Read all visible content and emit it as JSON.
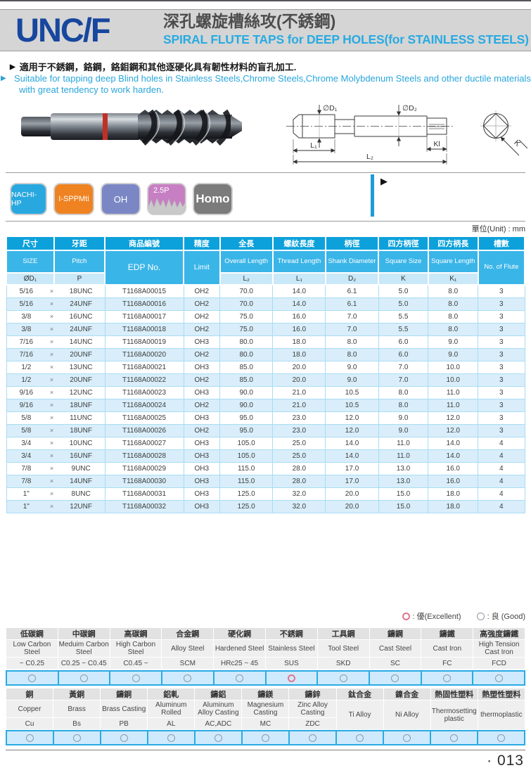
{
  "page": {
    "unit_label": "單位(Unit) : mm",
    "page_number": "· 013"
  },
  "icons": {
    "bullet": "▶",
    "play": "▶"
  },
  "colors": {
    "accent_blue": "#29abe2",
    "series_navy": "#17479e",
    "table_header_dark": "#0da1db",
    "table_header_light": "#3ab5e8",
    "table_header_pale": "#c9e8f8",
    "row_alt": "#d9eefa",
    "excellent_pink": "#e0758f",
    "good_gray": "#8e9aa6",
    "blue_bar": "#1d9bdb"
  },
  "header": {
    "series": "UNC/F",
    "title_zh": "深孔螺旋槽絲攻(不銹鋼)",
    "title_en": "SPIRAL FLUTE TAPS for DEEP HOLES(for STAINLESS STEELS)"
  },
  "intro": {
    "zh": "適用于不銹鋼，鉻鋼，鉻鉬鋼和其他逐硬化具有韌性材料的盲孔加工.",
    "en": "Suitable for tapping deep Blind holes in Stainless Steels,Chrome Steels,Chrome Molybdenum Steels and other ductile materials with great tendency to work harden."
  },
  "badges": [
    {
      "label": "NACHI-HP",
      "color": "#29a8e0"
    },
    {
      "label": "I-SPPMti",
      "color": "#ef8322"
    },
    {
      "label": "OH",
      "color": "#7b87c5"
    },
    {
      "label": "2.5P",
      "color": "#c77fc3"
    },
    {
      "label": "Homo",
      "color": "#7b7b7b"
    }
  ],
  "diagram": {
    "d1": "∅D₁",
    "d2": "∅D₂",
    "l1": "L₁",
    "l2": "L₂",
    "kl": "Kl",
    "k": "K"
  },
  "spec_table": {
    "multiply_sign": "×",
    "header_zh": [
      "尺寸",
      "牙距",
      "商品編號",
      "精度",
      "全長",
      "螺紋長度",
      "柄徑",
      "四方柄徑",
      "四方柄長",
      "槽數"
    ],
    "header_en": [
      "SIZE",
      "Pitch",
      "EDP No.",
      "Limit",
      "Overall Length",
      "Thread Length",
      "Shank Diameter",
      "Square Size",
      "Square Length",
      "No. of Flute"
    ],
    "header_sym": {
      "size": "ØD₁",
      "pitch": "P",
      "l2": "L₂",
      "l1": "L₁",
      "d2": "D₂",
      "k": "K",
      "k1": "K₁"
    },
    "rows": [
      [
        "5/16",
        "18UNC",
        "T1168A00015",
        "OH2",
        "70.0",
        "14.0",
        "6.1",
        "5.0",
        "8.0",
        "3"
      ],
      [
        "5/16",
        "24UNF",
        "T1168A00016",
        "OH2",
        "70.0",
        "14.0",
        "6.1",
        "5.0",
        "8.0",
        "3"
      ],
      [
        "3/8",
        "16UNC",
        "T1168A00017",
        "OH2",
        "75.0",
        "16.0",
        "7.0",
        "5.5",
        "8.0",
        "3"
      ],
      [
        "3/8",
        "24UNF",
        "T1168A00018",
        "OH2",
        "75.0",
        "16.0",
        "7.0",
        "5.5",
        "8.0",
        "3"
      ],
      [
        "7/16",
        "14UNC",
        "T1168A00019",
        "OH3",
        "80.0",
        "18.0",
        "8.0",
        "6.0",
        "9.0",
        "3"
      ],
      [
        "7/16",
        "20UNF",
        "T1168A00020",
        "OH2",
        "80.0",
        "18.0",
        "8.0",
        "6.0",
        "9.0",
        "3"
      ],
      [
        "1/2",
        "13UNC",
        "T1168A00021",
        "OH3",
        "85.0",
        "20.0",
        "9.0",
        "7.0",
        "10.0",
        "3"
      ],
      [
        "1/2",
        "20UNF",
        "T1168A00022",
        "OH2",
        "85.0",
        "20.0",
        "9.0",
        "7.0",
        "10.0",
        "3"
      ],
      [
        "9/16",
        "12UNC",
        "T1168A00023",
        "OH3",
        "90.0",
        "21.0",
        "10.5",
        "8.0",
        "11.0",
        "3"
      ],
      [
        "9/16",
        "18UNF",
        "T1168A00024",
        "OH2",
        "90.0",
        "21.0",
        "10.5",
        "8.0",
        "11.0",
        "3"
      ],
      [
        "5/8",
        "11UNC",
        "T1168A00025",
        "OH3",
        "95.0",
        "23.0",
        "12.0",
        "9.0",
        "12.0",
        "3"
      ],
      [
        "5/8",
        "18UNF",
        "T1168A00026",
        "OH2",
        "95.0",
        "23.0",
        "12.0",
        "9.0",
        "12.0",
        "3"
      ],
      [
        "3/4",
        "10UNC",
        "T1168A00027",
        "OH3",
        "105.0",
        "25.0",
        "14.0",
        "11.0",
        "14.0",
        "4"
      ],
      [
        "3/4",
        "16UNF",
        "T1168A00028",
        "OH3",
        "105.0",
        "25.0",
        "14.0",
        "11.0",
        "14.0",
        "4"
      ],
      [
        "7/8",
        "9UNC",
        "T1168A00029",
        "OH3",
        "115.0",
        "28.0",
        "17.0",
        "13.0",
        "16.0",
        "4"
      ],
      [
        "7/8",
        "14UNF",
        "T1168A00030",
        "OH3",
        "115.0",
        "28.0",
        "17.0",
        "13.0",
        "16.0",
        "4"
      ],
      [
        "1\"",
        "8UNC",
        "T1168A00031",
        "OH3",
        "125.0",
        "32.0",
        "20.0",
        "15.0",
        "18.0",
        "4"
      ],
      [
        "1\"",
        "12UNF",
        "T1168A00032",
        "OH3",
        "125.0",
        "32.0",
        "20.0",
        "15.0",
        "18.0",
        "4"
      ]
    ]
  },
  "legend": {
    "excellent_label": ": 優(Excellent)",
    "good_label": ": 良 (Good)"
  },
  "material_table_1": {
    "columns": [
      {
        "zh": "低碳鋼",
        "en": "Low Carbon Steel",
        "code": "~ C0.25",
        "rating": "good"
      },
      {
        "zh": "中碳鋼",
        "en": "Meduim Carbon Steel",
        "code": "C0.25 ~ C0.45",
        "rating": "good"
      },
      {
        "zh": "高碳鋼",
        "en": "High Carbon Steel",
        "code": "C0.45 ~",
        "rating": "good"
      },
      {
        "zh": "合金鋼",
        "en": "Alloy Steel",
        "code": "SCM",
        "rating": "good"
      },
      {
        "zh": "硬化鋼",
        "en": "Hardened Steel",
        "code": "HRc25 ~ 45",
        "rating": "good"
      },
      {
        "zh": "不銹鋼",
        "en": "Stainless Steel",
        "code": "SUS",
        "rating": "excellent"
      },
      {
        "zh": "工具鋼",
        "en": "Tool Steel",
        "code": "SKD",
        "rating": "good"
      },
      {
        "zh": "鑄鋼",
        "en": "Cast Steel",
        "code": "SC",
        "rating": "good"
      },
      {
        "zh": "鑄鐵",
        "en": "Cast Iron",
        "code": "FC",
        "rating": "good"
      },
      {
        "zh": "高強度鑄鐵",
        "en": "High Tension Cast Iron",
        "code": "FCD",
        "rating": "good"
      }
    ]
  },
  "material_table_2": {
    "columns": [
      {
        "zh": "銅",
        "en": "Copper",
        "code": "Cu",
        "rating": "good"
      },
      {
        "zh": "黃銅",
        "en": "Brass",
        "code": "Bs",
        "rating": "good"
      },
      {
        "zh": "鑄銅",
        "en": "Brass Casting",
        "code": "PB",
        "rating": "good"
      },
      {
        "zh": "鋁軋",
        "en": "Aluminum Rolled",
        "code": "AL",
        "rating": "good"
      },
      {
        "zh": "鑄鋁",
        "en": "Aluminum Alloy Casting",
        "code": "AC,ADC",
        "rating": "good"
      },
      {
        "zh": "鑄鎂",
        "en": "Magnesium Casting",
        "code": "MC",
        "rating": "good"
      },
      {
        "zh": "鑄鋅",
        "en": "Zinc Alloy Casting",
        "code": "ZDC",
        "rating": "good"
      },
      {
        "zh": "鈦合金",
        "en": "Ti Alloy",
        "code": null,
        "rating": "good"
      },
      {
        "zh": "鎳合金",
        "en": "Ni Alloy",
        "code": null,
        "rating": "good"
      },
      {
        "zh": "熱固性塑料",
        "en": "Thermosetting plastic",
        "code": null,
        "rating": "good"
      },
      {
        "zh": "熱塑性塑料",
        "en": "thermoplastic",
        "code": null,
        "rating": "good"
      }
    ]
  }
}
